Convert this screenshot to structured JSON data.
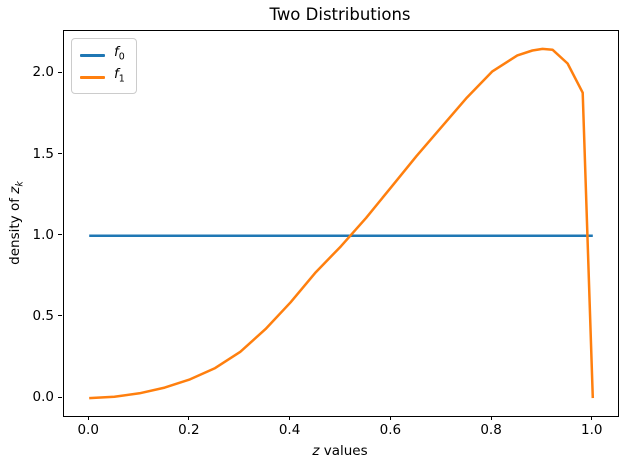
{
  "chart_data": {
    "type": "line",
    "title": "Two Distributions",
    "xlabel": "z values",
    "ylabel": "density of z_k",
    "grid": false,
    "legend_position": "upper left",
    "xlim": [
      -0.05,
      1.05
    ],
    "ylim": [
      -0.11,
      2.26
    ],
    "x_ticks": {
      "values": [
        0.0,
        0.2,
        0.4,
        0.6,
        0.8,
        1.0
      ],
      "labels": [
        "0.0",
        "0.2",
        "0.4",
        "0.6",
        "0.8",
        "1.0"
      ]
    },
    "y_ticks": {
      "values": [
        0.0,
        0.5,
        1.0,
        1.5,
        2.0
      ],
      "labels": [
        "0.0",
        "0.5",
        "1.0",
        "1.5",
        "2.0"
      ]
    },
    "series": [
      {
        "name": "f0",
        "label_base": "f",
        "label_sub": "0",
        "color": "#1f77b4",
        "line_width": 2.5,
        "points": [
          [
            0.0,
            1.0
          ],
          [
            1.0,
            1.0
          ]
        ]
      },
      {
        "name": "f1",
        "label_base": "f",
        "label_sub": "1",
        "color": "#ff7f0e",
        "line_width": 2.5,
        "points": [
          [
            0.0,
            0.0
          ],
          [
            0.05,
            0.008
          ],
          [
            0.1,
            0.03
          ],
          [
            0.15,
            0.065
          ],
          [
            0.2,
            0.115
          ],
          [
            0.25,
            0.185
          ],
          [
            0.3,
            0.285
          ],
          [
            0.35,
            0.425
          ],
          [
            0.4,
            0.59
          ],
          [
            0.45,
            0.775
          ],
          [
            0.5,
            0.935
          ],
          [
            0.55,
            1.11
          ],
          [
            0.6,
            1.3
          ],
          [
            0.65,
            1.49
          ],
          [
            0.7,
            1.67
          ],
          [
            0.75,
            1.85
          ],
          [
            0.8,
            2.01
          ],
          [
            0.85,
            2.11
          ],
          [
            0.88,
            2.14
          ],
          [
            0.9,
            2.15
          ],
          [
            0.92,
            2.145
          ],
          [
            0.95,
            2.06
          ],
          [
            0.98,
            1.88
          ],
          [
            1.0,
            0.0
          ]
        ]
      }
    ]
  },
  "labels": {
    "xlabel": {
      "italic": "z",
      "rest": " values"
    },
    "ylabel": {
      "prefix": "density of ",
      "italic": "z",
      "sub": "k"
    }
  },
  "legend": {
    "items": [
      {
        "base": "f",
        "sub": "0"
      },
      {
        "base": "f",
        "sub": "1"
      }
    ]
  }
}
